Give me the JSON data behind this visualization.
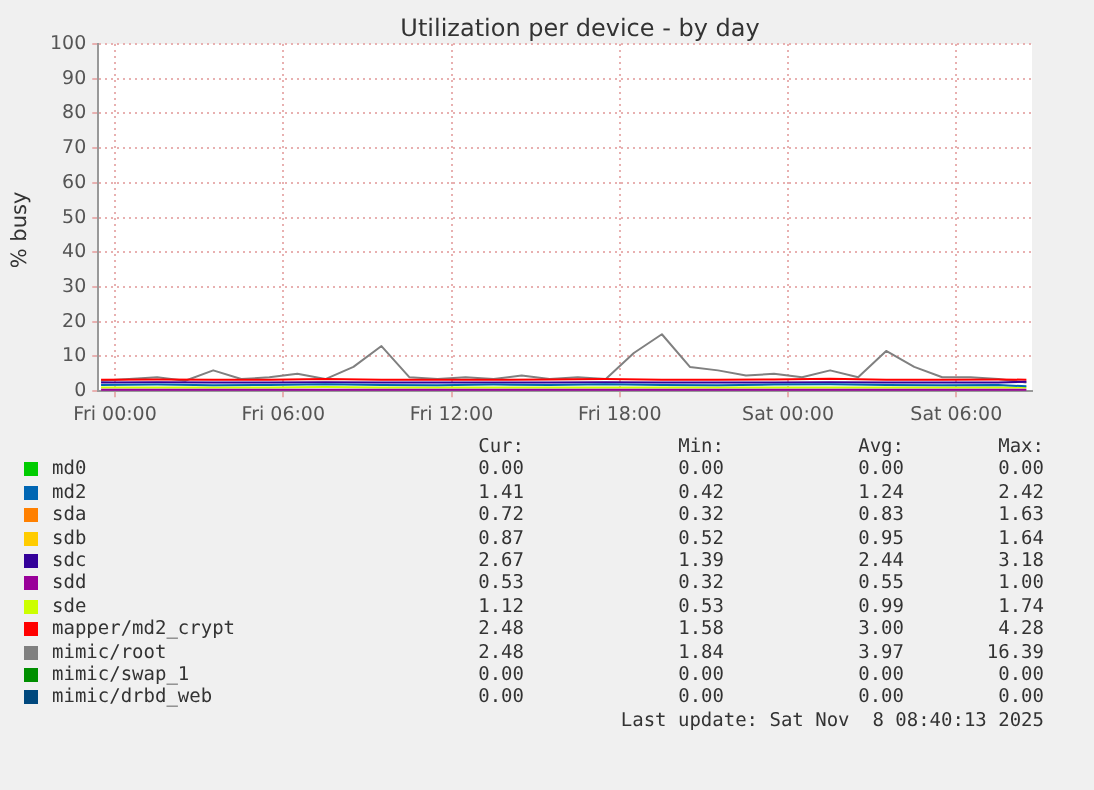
{
  "chart_data": {
    "type": "line",
    "title": "Utilization per device - by day",
    "ylabel": "% busy",
    "xlim": [
      "2025-11-06T23:24",
      "2025-11-08T08:42"
    ],
    "xticks": [
      {
        "value": "2025-11-07T00:00",
        "label": "Fri 00:00"
      },
      {
        "value": "2025-11-07T06:00",
        "label": "Fri 06:00"
      },
      {
        "value": "2025-11-07T12:00",
        "label": "Fri 12:00"
      },
      {
        "value": "2025-11-07T18:00",
        "label": "Fri 18:00"
      },
      {
        "value": "2025-11-08T00:00",
        "label": "Sat 00:00"
      },
      {
        "value": "2025-11-08T06:00",
        "label": "Sat 06:00"
      }
    ],
    "ylim": [
      0,
      100
    ],
    "yticks": [
      0,
      10,
      20,
      30,
      40,
      50,
      60,
      70,
      80,
      90,
      100
    ],
    "grid": true,
    "legend": "bottom",
    "marker": "none",
    "line_style": "solid",
    "series": [
      {
        "name": "md0",
        "color": "#00cc00"
      },
      {
        "name": "md2",
        "color": "#0066b3",
        "x": [
          "2025-11-06T23:30",
          "2025-11-07T01:30",
          "2025-11-07T03:30",
          "2025-11-07T05:30",
          "2025-11-07T07:30",
          "2025-11-07T09:30",
          "2025-11-07T11:30",
          "2025-11-07T13:30",
          "2025-11-07T15:30",
          "2025-11-07T17:30",
          "2025-11-07T19:30",
          "2025-11-07T21:30",
          "2025-11-07T23:30",
          "2025-11-08T01:30",
          "2025-11-08T03:30",
          "2025-11-08T05:30",
          "2025-11-08T07:30",
          "2025-11-08T08:30"
        ],
        "values": [
          1.8,
          1.9,
          1.7,
          1.8,
          2,
          1.8,
          1.7,
          1.9,
          1.8,
          2,
          1.8,
          1.7,
          1.9,
          2,
          1.8,
          1.7,
          1.8,
          1.4
        ]
      },
      {
        "name": "sda",
        "color": "#ff8000"
      },
      {
        "name": "sdb",
        "color": "#ffcc00"
      },
      {
        "name": "sdc",
        "color": "#330099",
        "x": [
          "2025-11-06T23:30",
          "2025-11-07T01:30",
          "2025-11-07T03:30",
          "2025-11-07T05:30",
          "2025-11-07T07:30",
          "2025-11-07T09:30",
          "2025-11-07T11:30",
          "2025-11-07T13:30",
          "2025-11-07T15:30",
          "2025-11-07T17:30",
          "2025-11-07T19:30",
          "2025-11-07T21:30",
          "2025-11-07T23:30",
          "2025-11-08T01:30",
          "2025-11-08T03:30",
          "2025-11-08T05:30",
          "2025-11-08T07:30",
          "2025-11-08T08:30"
        ],
        "values": [
          2.5,
          2.6,
          2.5,
          2.5,
          2.6,
          2.5,
          2.5,
          2.5,
          2.5,
          2.6,
          2.5,
          2.5,
          2.5,
          2.6,
          2.5,
          2.5,
          2.5,
          2.7
        ]
      },
      {
        "name": "sdd",
        "color": "#990099",
        "x": [
          "2025-11-06T23:30",
          "2025-11-07T01:30",
          "2025-11-07T03:30",
          "2025-11-07T05:30",
          "2025-11-07T07:30",
          "2025-11-07T09:30",
          "2025-11-07T11:30",
          "2025-11-07T13:30",
          "2025-11-07T15:30",
          "2025-11-07T17:30",
          "2025-11-07T19:30",
          "2025-11-07T21:30",
          "2025-11-07T23:30",
          "2025-11-08T01:30",
          "2025-11-08T03:30",
          "2025-11-08T05:30",
          "2025-11-08T07:30",
          "2025-11-08T08:30"
        ],
        "values": [
          0.4,
          0.4,
          0.4,
          0.4,
          0.4,
          0.4,
          0.4,
          0.4,
          0.4,
          0.4,
          0.4,
          0.4,
          0.4,
          0.4,
          0.4,
          0.4,
          0.4,
          0.4
        ]
      },
      {
        "name": "sde",
        "color": "#ccff00",
        "x": [
          "2025-11-06T23:30",
          "2025-11-07T01:30",
          "2025-11-07T03:30",
          "2025-11-07T05:30",
          "2025-11-07T07:30",
          "2025-11-07T09:30",
          "2025-11-07T11:30",
          "2025-11-07T13:30",
          "2025-11-07T15:30",
          "2025-11-07T17:30",
          "2025-11-07T19:30",
          "2025-11-07T21:30",
          "2025-11-07T23:30",
          "2025-11-08T01:30",
          "2025-11-08T03:30",
          "2025-11-08T05:30",
          "2025-11-08T07:30",
          "2025-11-08T08:30"
        ],
        "values": [
          1.1,
          1.1,
          1.1,
          1.1,
          1.2,
          1.1,
          1.1,
          1.1,
          1.1,
          1.1,
          1.1,
          1.1,
          1.1,
          1.1,
          1.1,
          1.1,
          1.1,
          1.1
        ]
      },
      {
        "name": "mapper/md2_crypt",
        "color": "#ff0000",
        "x": [
          "2025-11-06T23:30",
          "2025-11-07T01:30",
          "2025-11-07T03:30",
          "2025-11-07T05:30",
          "2025-11-07T07:30",
          "2025-11-07T09:30",
          "2025-11-07T11:30",
          "2025-11-07T13:30",
          "2025-11-07T15:30",
          "2025-11-07T17:30",
          "2025-11-07T19:30",
          "2025-11-07T21:30",
          "2025-11-07T23:30",
          "2025-11-08T01:30",
          "2025-11-08T03:30",
          "2025-11-08T05:30",
          "2025-11-08T07:30",
          "2025-11-08T08:30"
        ],
        "values": [
          3.3,
          3.4,
          3.3,
          3.3,
          3.5,
          3.3,
          3.3,
          3.3,
          3.4,
          3.5,
          3.3,
          3.3,
          3.4,
          3.6,
          3.3,
          3.3,
          3.4,
          3.3
        ]
      },
      {
        "name": "mimic/root",
        "color": "#808080",
        "x": [
          "2025-11-06T23:30",
          "2025-11-07T00:30",
          "2025-11-07T01:30",
          "2025-11-07T02:30",
          "2025-11-07T03:30",
          "2025-11-07T04:30",
          "2025-11-07T05:30",
          "2025-11-07T06:30",
          "2025-11-07T07:30",
          "2025-11-07T08:30",
          "2025-11-07T09:30",
          "2025-11-07T10:30",
          "2025-11-07T11:30",
          "2025-11-07T12:30",
          "2025-11-07T13:30",
          "2025-11-07T14:30",
          "2025-11-07T15:30",
          "2025-11-07T16:30",
          "2025-11-07T17:30",
          "2025-11-07T18:30",
          "2025-11-07T19:30",
          "2025-11-07T20:30",
          "2025-11-07T21:30",
          "2025-11-07T22:30",
          "2025-11-07T23:30",
          "2025-11-08T00:30",
          "2025-11-08T01:30",
          "2025-11-08T02:30",
          "2025-11-08T03:30",
          "2025-11-08T04:30",
          "2025-11-08T05:30",
          "2025-11-08T06:30",
          "2025-11-08T07:30",
          "2025-11-08T08:30"
        ],
        "values": [
          3,
          3.5,
          4,
          3,
          6,
          3.5,
          4,
          5,
          3.5,
          7,
          13,
          4,
          3.5,
          4,
          3.5,
          4.5,
          3.5,
          4,
          3.5,
          11,
          16.4,
          7,
          6,
          4.5,
          5,
          4,
          6,
          4,
          11.6,
          7,
          4,
          4,
          3.5,
          2.5
        ]
      },
      {
        "name": "mimic/swap_1",
        "color": "#008f00"
      },
      {
        "name": "mimic/drbd_web",
        "color": "#00487d"
      }
    ],
    "annotations": [
      "Cur:",
      "Min:",
      "Avg:",
      "Max:",
      "0.00",
      "0.00",
      "0.00",
      "0.00",
      "1.41",
      "0.42",
      "1.24",
      "2.42",
      "0.72",
      "0.32",
      "0.83",
      "1.63",
      "0.87",
      "0.52",
      "0.95",
      "1.64",
      "2.67",
      "1.39",
      "2.44",
      "3.18",
      "0.53",
      "0.32",
      "0.55",
      "1.00",
      "1.12",
      "0.53",
      "0.99",
      "1.74",
      "2.48",
      "1.58",
      "3.00",
      "4.28",
      "2.48",
      "1.84",
      "3.97",
      "16.39",
      "0.00",
      "0.00",
      "0.00",
      "0.00",
      "0.00",
      "0.00",
      "0.00",
      "0.00",
      "Last update: Sat Nov  8 08:40:13 2025"
    ]
  }
}
